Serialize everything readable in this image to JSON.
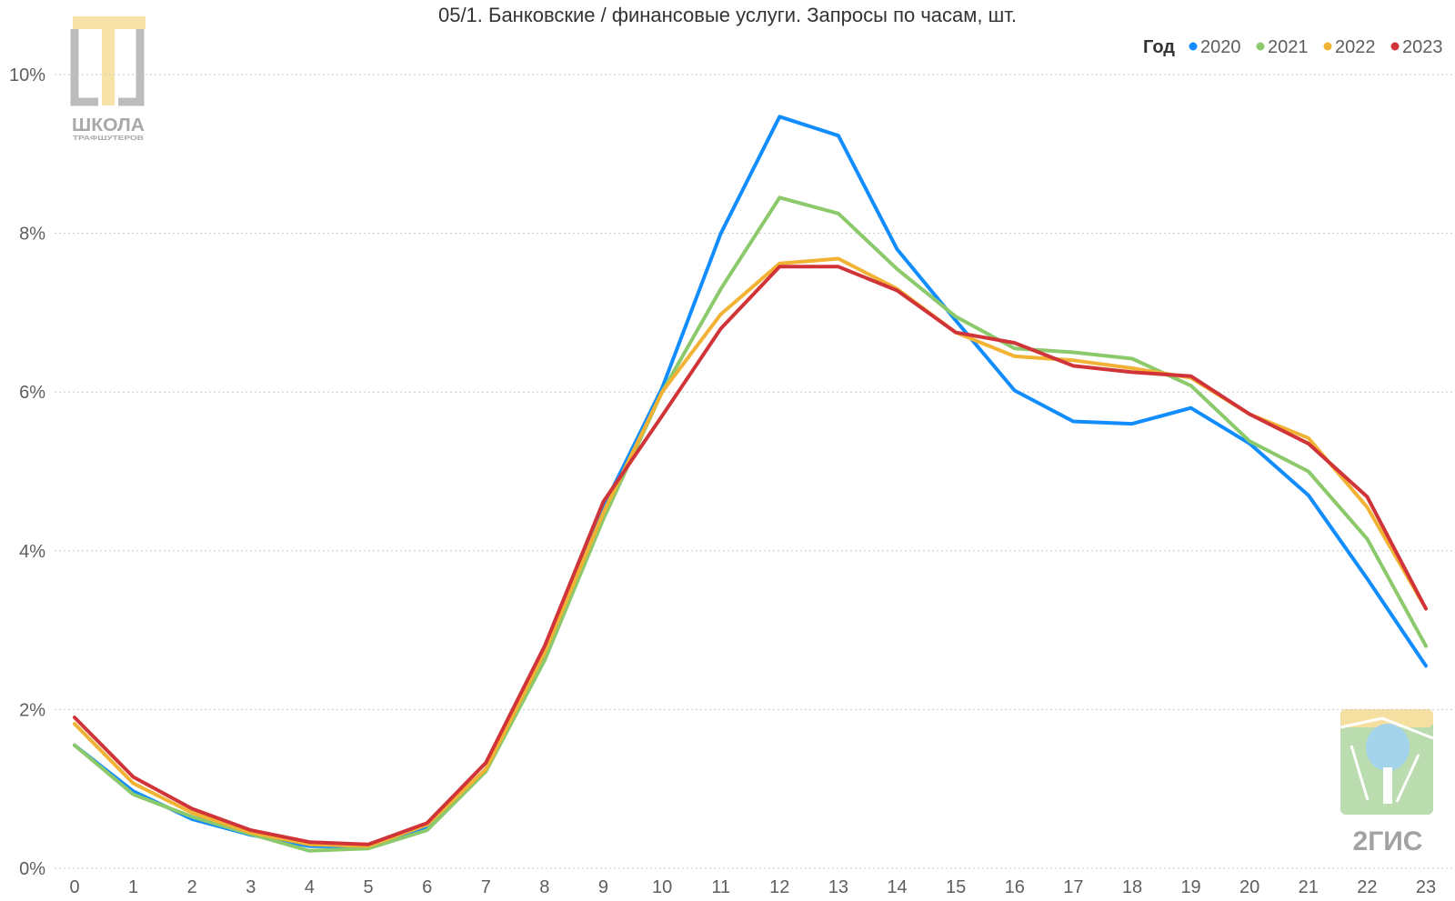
{
  "chart_data": {
    "type": "line",
    "title": "05/1. Банковские / финансовые услуги. Запросы по часам, шт.",
    "xlabel": "",
    "ylabel": "",
    "x": [
      "0",
      "1",
      "2",
      "3",
      "4",
      "5",
      "6",
      "7",
      "8",
      "9",
      "10",
      "11",
      "12",
      "13",
      "14",
      "15",
      "16",
      "17",
      "18",
      "19",
      "20",
      "21",
      "22",
      "23"
    ],
    "ylim": [
      0,
      10
    ],
    "y_ticks": [
      "0%",
      "2%",
      "4%",
      "6%",
      "8%",
      "10%"
    ],
    "y_tick_values": [
      0,
      2,
      4,
      6,
      8,
      10
    ],
    "grid": true,
    "legend": {
      "title": "Год",
      "position": "top-right"
    },
    "series": [
      {
        "name": "2020",
        "color": "#118DFF",
        "values": [
          1.55,
          0.97,
          0.62,
          0.42,
          0.28,
          0.27,
          0.52,
          1.25,
          2.7,
          4.55,
          6.05,
          8.0,
          9.47,
          9.23,
          7.8,
          6.9,
          6.02,
          5.63,
          5.6,
          5.8,
          5.35,
          4.7,
          3.65,
          2.55
        ]
      },
      {
        "name": "2021",
        "color": "#8BC96B",
        "values": [
          1.55,
          0.93,
          0.65,
          0.43,
          0.22,
          0.25,
          0.48,
          1.22,
          2.62,
          4.4,
          6.0,
          7.3,
          8.45,
          8.25,
          7.55,
          6.95,
          6.55,
          6.5,
          6.42,
          6.08,
          5.38,
          5.0,
          4.15,
          2.8
        ]
      },
      {
        "name": "2022",
        "color": "#F2B233",
        "values": [
          1.82,
          1.07,
          0.7,
          0.45,
          0.3,
          0.28,
          0.55,
          1.25,
          2.72,
          4.48,
          6.0,
          6.98,
          7.62,
          7.68,
          7.3,
          6.75,
          6.45,
          6.4,
          6.3,
          6.18,
          5.72,
          5.42,
          4.55,
          3.27
        ]
      },
      {
        "name": "2023",
        "color": "#D13438",
        "values": [
          1.9,
          1.15,
          0.75,
          0.48,
          0.33,
          0.3,
          0.57,
          1.33,
          2.8,
          4.62,
          5.7,
          6.8,
          7.58,
          7.58,
          7.28,
          6.75,
          6.62,
          6.33,
          6.25,
          6.2,
          5.72,
          5.35,
          4.68,
          3.27
        ]
      }
    ]
  },
  "logos": {
    "school": {
      "line1": "ШКОЛА",
      "line2": "ТРАФШУТЕРОВ"
    },
    "gis": {
      "text": "2ГИС"
    }
  }
}
